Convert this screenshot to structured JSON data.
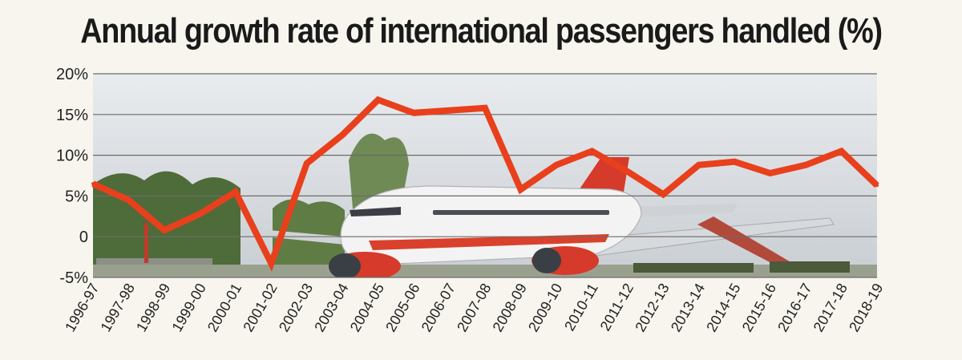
{
  "chart_data": {
    "type": "line",
    "title": "Annual growth rate of international passengers handled (%)",
    "xlabel": "",
    "ylabel": "",
    "categories": [
      "1996-97",
      "1997-98",
      "1998-99",
      "1999-00",
      "2000-01",
      "2001-02",
      "2002-03",
      "2003-04",
      "2004-05",
      "2005-06",
      "2006-07",
      "2007-08",
      "2008-09",
      "2009-10",
      "2010-11",
      "2011-12",
      "2012-13",
      "2013-14",
      "2014-15",
      "2015-16",
      "2016-17",
      "2017-18",
      "2018-19"
    ],
    "series": [
      {
        "values": [
          6.5,
          4.5,
          0.8,
          2.8,
          5.5,
          -3.3,
          9.0,
          12.5,
          16.8,
          15.2,
          15.5,
          15.8,
          5.8,
          8.8,
          10.5,
          8.0,
          5.2,
          8.8,
          9.2,
          7.8,
          8.8,
          10.5,
          6.3
        ],
        "color": "#e8401c"
      }
    ],
    "yticks": [
      20,
      15,
      10,
      5,
      0,
      -5
    ],
    "ytick_labels": [
      "20%",
      "15%",
      "10%",
      "5%",
      "0",
      "-5%"
    ],
    "ylim": [
      -5,
      20
    ],
    "grid": true,
    "legend": "none",
    "background_photo": "aircraft-photo"
  }
}
